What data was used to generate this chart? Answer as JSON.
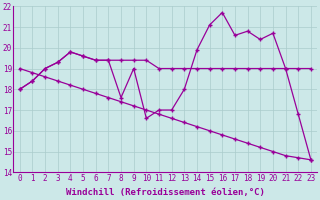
{
  "line1_x": [
    0,
    1,
    2,
    3,
    4,
    5,
    6,
    7,
    8,
    9,
    10,
    11,
    12,
    13,
    14,
    15,
    16,
    17,
    18,
    19,
    20,
    21,
    22,
    23
  ],
  "line1_y": [
    18.0,
    18.4,
    19.0,
    19.3,
    19.8,
    19.6,
    19.4,
    19.4,
    19.4,
    19.4,
    19.4,
    19.0,
    19.0,
    19.0,
    19.0,
    19.0,
    19.0,
    19.0,
    19.0,
    19.0,
    19.0,
    19.0,
    19.0,
    19.0
  ],
  "line2_x": [
    0,
    1,
    2,
    3,
    4,
    5,
    6,
    7,
    8,
    9,
    10,
    11,
    12,
    13,
    14,
    15,
    16,
    17,
    18,
    19,
    20,
    21,
    22,
    23
  ],
  "line2_y": [
    18.0,
    18.4,
    19.0,
    19.3,
    19.8,
    19.6,
    19.4,
    19.4,
    17.6,
    19.0,
    16.6,
    17.0,
    17.0,
    18.0,
    19.9,
    21.1,
    21.7,
    20.6,
    20.8,
    20.4,
    20.7,
    19.0,
    16.8,
    14.6
  ],
  "line3_x": [
    0,
    1,
    2,
    3,
    4,
    5,
    6,
    7,
    8,
    9,
    10,
    11,
    12,
    13,
    14,
    15,
    16,
    17,
    18,
    19,
    20,
    21,
    22,
    23
  ],
  "line3_y": [
    19.0,
    18.8,
    18.6,
    18.4,
    18.2,
    18.0,
    17.8,
    17.6,
    17.4,
    17.2,
    17.0,
    16.8,
    16.6,
    16.4,
    16.2,
    16.0,
    15.8,
    15.6,
    15.4,
    15.2,
    15.0,
    14.8,
    14.7,
    14.6
  ],
  "line_color": "#990099",
  "bg_color": "#cce8e8",
  "grid_color": "#aacccc",
  "xlim_min": -0.5,
  "xlim_max": 23.5,
  "ylim_min": 14,
  "ylim_max": 22,
  "xticks": [
    0,
    1,
    2,
    3,
    4,
    5,
    6,
    7,
    8,
    9,
    10,
    11,
    12,
    13,
    14,
    15,
    16,
    17,
    18,
    19,
    20,
    21,
    22,
    23
  ],
  "yticks": [
    14,
    15,
    16,
    17,
    18,
    19,
    20,
    21,
    22
  ],
  "xlabel": "Windchill (Refroidissement éolien,°C)",
  "markersize": 2.0,
  "linewidth": 0.9,
  "tick_fontsize": 5.5,
  "label_fontsize": 6.5
}
